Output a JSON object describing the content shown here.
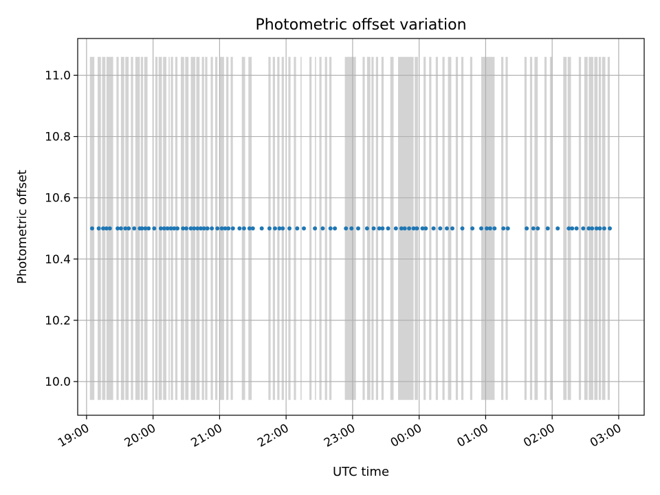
{
  "chart_data": {
    "type": "scatter",
    "title": "Photometric offset variation",
    "xlabel": "UTC time",
    "ylabel": "Photometric offset",
    "ylim": [
      9.89,
      11.12
    ],
    "xlim": [
      "18:52",
      "03:23"
    ],
    "grid": true,
    "colors": {
      "points": "#1f77b4",
      "bands": "#d3d3d3"
    },
    "yticks": [
      "10.0",
      "10.2",
      "10.4",
      "10.6",
      "10.8",
      "11.0"
    ],
    "xticks": [
      "19:00",
      "20:00",
      "21:00",
      "22:00",
      "23:00",
      "00:00",
      "01:00",
      "02:00",
      "03:00"
    ],
    "band_range": [
      9.94,
      11.06
    ],
    "series": [
      {
        "values": [
          {
            "x": "19:05",
            "y": 10.5
          },
          {
            "x": "19:11",
            "y": 10.5
          },
          {
            "x": "19:15",
            "y": 10.5
          },
          {
            "x": "19:18",
            "y": 10.5
          },
          {
            "x": "19:21",
            "y": 10.5
          },
          {
            "x": "19:28",
            "y": 10.5
          },
          {
            "x": "19:31",
            "y": 10.5
          },
          {
            "x": "19:35",
            "y": 10.5
          },
          {
            "x": "19:38",
            "y": 10.5
          },
          {
            "x": "19:43",
            "y": 10.5
          },
          {
            "x": "19:48",
            "y": 10.5
          },
          {
            "x": "19:50",
            "y": 10.5
          },
          {
            "x": "19:53",
            "y": 10.5
          },
          {
            "x": "19:56",
            "y": 10.5
          },
          {
            "x": "20:01",
            "y": 10.5
          },
          {
            "x": "20:07",
            "y": 10.5
          },
          {
            "x": "20:10",
            "y": 10.5
          },
          {
            "x": "20:13",
            "y": 10.5
          },
          {
            "x": "20:16",
            "y": 10.5
          },
          {
            "x": "20:19",
            "y": 10.5
          },
          {
            "x": "20:22",
            "y": 10.5
          },
          {
            "x": "20:27",
            "y": 10.5
          },
          {
            "x": "20:30",
            "y": 10.5
          },
          {
            "x": "20:34",
            "y": 10.5
          },
          {
            "x": "20:37",
            "y": 10.5
          },
          {
            "x": "20:40",
            "y": 10.5
          },
          {
            "x": "20:43",
            "y": 10.5
          },
          {
            "x": "20:46",
            "y": 10.5
          },
          {
            "x": "20:49",
            "y": 10.5
          },
          {
            "x": "20:53",
            "y": 10.5
          },
          {
            "x": "20:58",
            "y": 10.5
          },
          {
            "x": "21:02",
            "y": 10.5
          },
          {
            "x": "21:05",
            "y": 10.5
          },
          {
            "x": "21:08",
            "y": 10.5
          },
          {
            "x": "21:12",
            "y": 10.5
          },
          {
            "x": "21:18",
            "y": 10.5
          },
          {
            "x": "21:22",
            "y": 10.5
          },
          {
            "x": "21:27",
            "y": 10.5
          },
          {
            "x": "21:30",
            "y": 10.5
          },
          {
            "x": "21:38",
            "y": 10.5
          },
          {
            "x": "21:45",
            "y": 10.5
          },
          {
            "x": "21:50",
            "y": 10.5
          },
          {
            "x": "21:54",
            "y": 10.5
          },
          {
            "x": "21:57",
            "y": 10.5
          },
          {
            "x": "22:03",
            "y": 10.5
          },
          {
            "x": "22:10",
            "y": 10.5
          },
          {
            "x": "22:16",
            "y": 10.5
          },
          {
            "x": "22:26",
            "y": 10.5
          },
          {
            "x": "22:33",
            "y": 10.5
          },
          {
            "x": "22:40",
            "y": 10.5
          },
          {
            "x": "22:44",
            "y": 10.5
          },
          {
            "x": "22:54",
            "y": 10.5
          },
          {
            "x": "22:59",
            "y": 10.5
          },
          {
            "x": "23:05",
            "y": 10.5
          },
          {
            "x": "23:13",
            "y": 10.5
          },
          {
            "x": "23:19",
            "y": 10.5
          },
          {
            "x": "23:24",
            "y": 10.5
          },
          {
            "x": "23:27",
            "y": 10.5
          },
          {
            "x": "23:32",
            "y": 10.5
          },
          {
            "x": "23:39",
            "y": 10.5
          },
          {
            "x": "23:44",
            "y": 10.5
          },
          {
            "x": "23:47",
            "y": 10.5
          },
          {
            "x": "23:51",
            "y": 10.5
          },
          {
            "x": "23:55",
            "y": 10.5
          },
          {
            "x": "23:58",
            "y": 10.5
          },
          {
            "x": "00:03",
            "y": 10.5
          },
          {
            "x": "00:06",
            "y": 10.5
          },
          {
            "x": "00:13",
            "y": 10.5
          },
          {
            "x": "00:19",
            "y": 10.5
          },
          {
            "x": "00:25",
            "y": 10.5
          },
          {
            "x": "00:30",
            "y": 10.5
          },
          {
            "x": "00:39",
            "y": 10.5
          },
          {
            "x": "00:48",
            "y": 10.5
          },
          {
            "x": "00:56",
            "y": 10.5
          },
          {
            "x": "01:01",
            "y": 10.5
          },
          {
            "x": "01:04",
            "y": 10.5
          },
          {
            "x": "01:08",
            "y": 10.5
          },
          {
            "x": "01:16",
            "y": 10.5
          },
          {
            "x": "01:20",
            "y": 10.5
          },
          {
            "x": "01:37",
            "y": 10.5
          },
          {
            "x": "01:43",
            "y": 10.5
          },
          {
            "x": "01:47",
            "y": 10.5
          },
          {
            "x": "01:56",
            "y": 10.5
          },
          {
            "x": "02:05",
            "y": 10.5
          },
          {
            "x": "02:15",
            "y": 10.5
          },
          {
            "x": "02:18",
            "y": 10.5
          },
          {
            "x": "02:22",
            "y": 10.5
          },
          {
            "x": "02:28",
            "y": 10.5
          },
          {
            "x": "02:33",
            "y": 10.5
          },
          {
            "x": "02:36",
            "y": 10.5
          },
          {
            "x": "02:40",
            "y": 10.5
          },
          {
            "x": "02:43",
            "y": 10.5
          },
          {
            "x": "02:47",
            "y": 10.5
          },
          {
            "x": "02:52",
            "y": 10.5
          }
        ]
      }
    ],
    "error_bands": [
      {
        "start": "19:03",
        "end": "19:07"
      },
      {
        "start": "19:10",
        "end": "19:13"
      },
      {
        "start": "19:14",
        "end": "19:17"
      },
      {
        "start": "19:18",
        "end": "19:24"
      },
      {
        "start": "19:27",
        "end": "19:29"
      },
      {
        "start": "19:31",
        "end": "19:34"
      },
      {
        "start": "19:35",
        "end": "19:38"
      },
      {
        "start": "19:40",
        "end": "19:42"
      },
      {
        "start": "19:44",
        "end": "19:48"
      },
      {
        "start": "19:49",
        "end": "19:51"
      },
      {
        "start": "19:52",
        "end": "19:55"
      },
      {
        "start": "20:02",
        "end": "20:04"
      },
      {
        "start": "20:05",
        "end": "20:08"
      },
      {
        "start": "20:09",
        "end": "20:12"
      },
      {
        "start": "20:14",
        "end": "20:15"
      },
      {
        "start": "20:16",
        "end": "20:18"
      },
      {
        "start": "20:20",
        "end": "20:22"
      },
      {
        "start": "20:25",
        "end": "20:28"
      },
      {
        "start": "20:29",
        "end": "20:32"
      },
      {
        "start": "20:34",
        "end": "20:38"
      },
      {
        "start": "20:39",
        "end": "20:42"
      },
      {
        "start": "20:44",
        "end": "20:46"
      },
      {
        "start": "20:47",
        "end": "20:49"
      },
      {
        "start": "20:52",
        "end": "20:54"
      },
      {
        "start": "20:56",
        "end": "20:58"
      },
      {
        "start": "21:00",
        "end": "21:04"
      },
      {
        "start": "21:06",
        "end": "21:08"
      },
      {
        "start": "21:10",
        "end": "21:12"
      },
      {
        "start": "21:20",
        "end": "21:23"
      },
      {
        "start": "21:26",
        "end": "21:29"
      },
      {
        "start": "21:44",
        "end": "21:46"
      },
      {
        "start": "21:48",
        "end": "21:50"
      },
      {
        "start": "21:52",
        "end": "21:54"
      },
      {
        "start": "21:56",
        "end": "21:58"
      },
      {
        "start": "22:02",
        "end": "22:04"
      },
      {
        "start": "22:07",
        "end": "22:09"
      },
      {
        "start": "22:13",
        "end": "22:14"
      },
      {
        "start": "22:21",
        "end": "22:23"
      },
      {
        "start": "22:26",
        "end": "22:27"
      },
      {
        "start": "22:30",
        "end": "22:32"
      },
      {
        "start": "22:35",
        "end": "22:37"
      },
      {
        "start": "22:39",
        "end": "22:41"
      },
      {
        "start": "22:53",
        "end": "23:03"
      },
      {
        "start": "23:09",
        "end": "23:11"
      },
      {
        "start": "23:13",
        "end": "23:16"
      },
      {
        "start": "23:17",
        "end": "23:19"
      },
      {
        "start": "23:21",
        "end": "23:23"
      },
      {
        "start": "23:26",
        "end": "23:28"
      },
      {
        "start": "23:34",
        "end": "23:37"
      },
      {
        "start": "23:41",
        "end": "23:55"
      },
      {
        "start": "23:56",
        "end": "23:59"
      },
      {
        "start": "00:04",
        "end": "00:06"
      },
      {
        "start": "00:09",
        "end": "00:11"
      },
      {
        "start": "00:15",
        "end": "00:17"
      },
      {
        "start": "00:21",
        "end": "00:23"
      },
      {
        "start": "00:26",
        "end": "00:29"
      },
      {
        "start": "00:33",
        "end": "00:35"
      },
      {
        "start": "00:38",
        "end": "00:40"
      },
      {
        "start": "00:46",
        "end": "00:48"
      },
      {
        "start": "00:56",
        "end": "01:08"
      },
      {
        "start": "01:14",
        "end": "01:16"
      },
      {
        "start": "01:18",
        "end": "01:20"
      },
      {
        "start": "01:35",
        "end": "01:37"
      },
      {
        "start": "01:40",
        "end": "01:42"
      },
      {
        "start": "01:44",
        "end": "01:47"
      },
      {
        "start": "01:53",
        "end": "01:55"
      },
      {
        "start": "01:58",
        "end": "02:00"
      },
      {
        "start": "02:10",
        "end": "02:13"
      },
      {
        "start": "02:14",
        "end": "02:17"
      },
      {
        "start": "02:24",
        "end": "02:26"
      },
      {
        "start": "02:29",
        "end": "02:32"
      },
      {
        "start": "02:33",
        "end": "02:37"
      },
      {
        "start": "02:38",
        "end": "02:41"
      },
      {
        "start": "02:42",
        "end": "02:44"
      },
      {
        "start": "02:45",
        "end": "02:48"
      },
      {
        "start": "02:50",
        "end": "02:52"
      }
    ]
  }
}
